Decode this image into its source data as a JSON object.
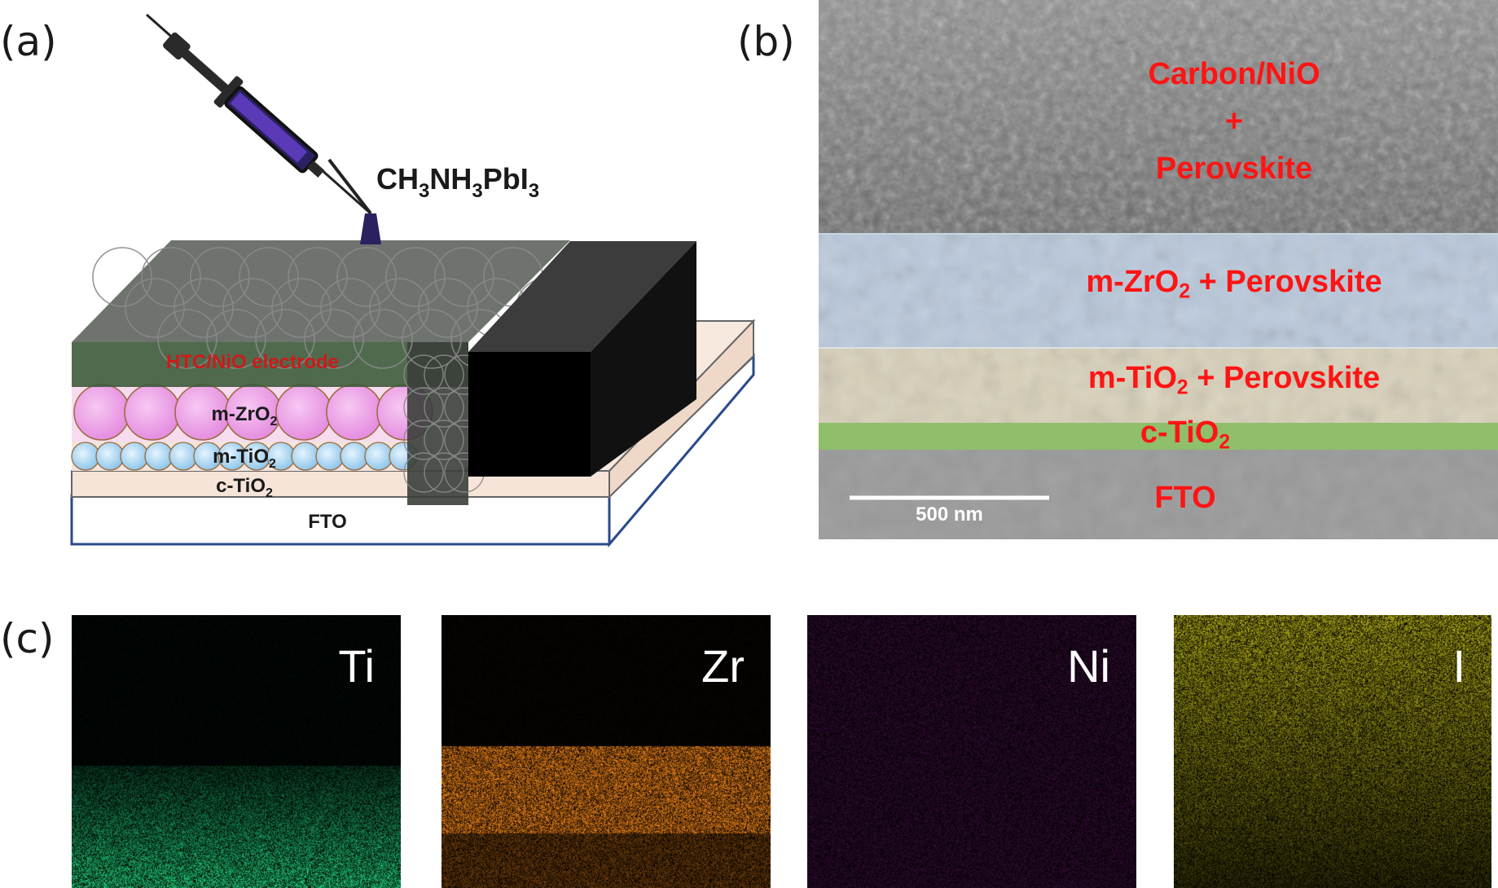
{
  "panels": {
    "a": {
      "letter": "(a)",
      "precursor_formula": {
        "base": "CH",
        "s1": "3",
        "mid1": "NH",
        "s2": "3",
        "mid2": "PbI",
        "s3": "3"
      },
      "labels": {
        "electrode": "HTC/NiO electrode",
        "mzro2": {
          "base": "m-ZrO",
          "sub": "2"
        },
        "mtio2": {
          "base": "m-TiO",
          "sub": "2"
        },
        "ctio2": {
          "base": "c-TiO",
          "sub": "2"
        },
        "fto": "FTO"
      }
    },
    "b": {
      "letter": "(b)",
      "layers": {
        "top_line1": "Carbon/NiO",
        "top_line2": "+",
        "top_line3": "Perovskite",
        "zro2": {
          "base": "m-ZrO",
          "sub": "2",
          "rest": " + Perovskite"
        },
        "tio2": {
          "base": "m-TiO",
          "sub": "2",
          "rest": " + Perovskite"
        },
        "ctio2": {
          "base": "c-TiO",
          "sub": "2"
        },
        "fto": "FTO"
      },
      "scale_bar": "500 nm"
    },
    "c": {
      "letter": "(c)",
      "maps": [
        {
          "element": "Ti",
          "color": "#1fbf70"
        },
        {
          "element": "Zr",
          "color": "#ff8c1a"
        },
        {
          "element": "Ni",
          "color": "#b02ab8"
        },
        {
          "element": "I",
          "color": "#c8c21a"
        }
      ]
    }
  },
  "colors": {
    "label_red": "#ff1414",
    "ctio2_band": "#8fbf6a",
    "zro2_tint": "#b8c8dc",
    "tio2_tint": "#d8d0b8"
  }
}
